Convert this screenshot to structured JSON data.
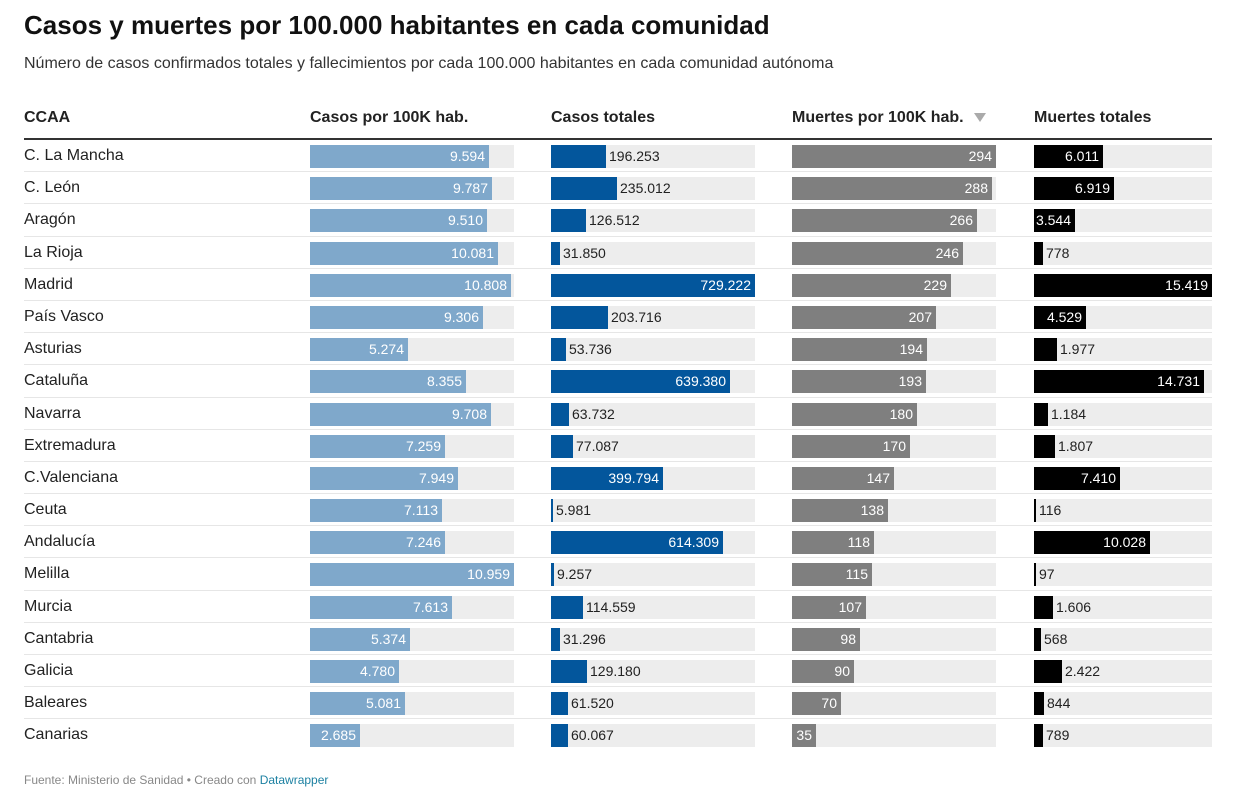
{
  "title": "Casos y muertes por 100.000 habitantes en cada comunidad",
  "subtitle": "Número de casos confirmados totales y fallecimientos por cada 100.000 habitantes en cada comunidad autónoma",
  "footer": {
    "source": "Fuente: Ministerio de Sanidad • Creado con",
    "link": "Datawrapper"
  },
  "icons": {
    "sort": "sort-descending-icon"
  },
  "colors": {
    "casos_100k": "#7fa8cb",
    "casos_totales": "#03569c",
    "muertes_100k": "#7f7f7f",
    "muertes_totales": "#000000",
    "track": "#ededed"
  },
  "chart_data": {
    "type": "table",
    "columns": [
      {
        "key": "ccaa",
        "label": "CCAA"
      },
      {
        "key": "casos_100k",
        "label": "Casos por 100K hab.",
        "max": 10959
      },
      {
        "key": "casos_totales",
        "label": "Casos totales",
        "max": 729222
      },
      {
        "key": "muertes_100k",
        "label": "Muertes por 100K hab.",
        "max": 294,
        "sorted": "descending"
      },
      {
        "key": "muertes_totales",
        "label": "Muertes totales",
        "max": 15419
      }
    ],
    "rows": [
      {
        "ccaa": "C. La Mancha",
        "casos_100k": 9594,
        "casos_100k_label": "9.594",
        "casos_totales": 196253,
        "casos_totales_label": "196.253",
        "muertes_100k": 294,
        "muertes_100k_label": "294",
        "muertes_totales": 6011,
        "muertes_totales_label": "6.011"
      },
      {
        "ccaa": "C. León",
        "casos_100k": 9787,
        "casos_100k_label": "9.787",
        "casos_totales": 235012,
        "casos_totales_label": "235.012",
        "muertes_100k": 288,
        "muertes_100k_label": "288",
        "muertes_totales": 6919,
        "muertes_totales_label": "6.919"
      },
      {
        "ccaa": "Aragón",
        "casos_100k": 9510,
        "casos_100k_label": "9.510",
        "casos_totales": 126512,
        "casos_totales_label": "126.512",
        "muertes_100k": 266,
        "muertes_100k_label": "266",
        "muertes_totales": 3544,
        "muertes_totales_label": "3.544"
      },
      {
        "ccaa": "La Rioja",
        "casos_100k": 10081,
        "casos_100k_label": "10.081",
        "casos_totales": 31850,
        "casos_totales_label": "31.850",
        "muertes_100k": 246,
        "muertes_100k_label": "246",
        "muertes_totales": 778,
        "muertes_totales_label": "778"
      },
      {
        "ccaa": "Madrid",
        "casos_100k": 10808,
        "casos_100k_label": "10.808",
        "casos_totales": 729222,
        "casos_totales_label": "729.222",
        "muertes_100k": 229,
        "muertes_100k_label": "229",
        "muertes_totales": 15419,
        "muertes_totales_label": "15.419"
      },
      {
        "ccaa": "País Vasco",
        "casos_100k": 9306,
        "casos_100k_label": "9.306",
        "casos_totales": 203716,
        "casos_totales_label": "203.716",
        "muertes_100k": 207,
        "muertes_100k_label": "207",
        "muertes_totales": 4529,
        "muertes_totales_label": "4.529"
      },
      {
        "ccaa": "Asturias",
        "casos_100k": 5274,
        "casos_100k_label": "5.274",
        "casos_totales": 53736,
        "casos_totales_label": "53.736",
        "muertes_100k": 194,
        "muertes_100k_label": "194",
        "muertes_totales": 1977,
        "muertes_totales_label": "1.977"
      },
      {
        "ccaa": "Cataluña",
        "casos_100k": 8355,
        "casos_100k_label": "8.355",
        "casos_totales": 639380,
        "casos_totales_label": "639.380",
        "muertes_100k": 193,
        "muertes_100k_label": "193",
        "muertes_totales": 14731,
        "muertes_totales_label": "14.731"
      },
      {
        "ccaa": "Navarra",
        "casos_100k": 9708,
        "casos_100k_label": "9.708",
        "casos_totales": 63732,
        "casos_totales_label": "63.732",
        "muertes_100k": 180,
        "muertes_100k_label": "180",
        "muertes_totales": 1184,
        "muertes_totales_label": "1.184"
      },
      {
        "ccaa": "Extremadura",
        "casos_100k": 7259,
        "casos_100k_label": "7.259",
        "casos_totales": 77087,
        "casos_totales_label": "77.087",
        "muertes_100k": 170,
        "muertes_100k_label": "170",
        "muertes_totales": 1807,
        "muertes_totales_label": "1.807"
      },
      {
        "ccaa": "C.Valenciana",
        "casos_100k": 7949,
        "casos_100k_label": "7.949",
        "casos_totales": 399794,
        "casos_totales_label": "399.794",
        "muertes_100k": 147,
        "muertes_100k_label": "147",
        "muertes_totales": 7410,
        "muertes_totales_label": "7.410"
      },
      {
        "ccaa": "Ceuta",
        "casos_100k": 7113,
        "casos_100k_label": "7.113",
        "casos_totales": 5981,
        "casos_totales_label": "5.981",
        "muertes_100k": 138,
        "muertes_100k_label": "138",
        "muertes_totales": 116,
        "muertes_totales_label": "116"
      },
      {
        "ccaa": "Andalucía",
        "casos_100k": 7246,
        "casos_100k_label": "7.246",
        "casos_totales": 614309,
        "casos_totales_label": "614.309",
        "muertes_100k": 118,
        "muertes_100k_label": "118",
        "muertes_totales": 10028,
        "muertes_totales_label": "10.028"
      },
      {
        "ccaa": "Melilla",
        "casos_100k": 10959,
        "casos_100k_label": "10.959",
        "casos_totales": 9257,
        "casos_totales_label": "9.257",
        "muertes_100k": 115,
        "muertes_100k_label": "115",
        "muertes_totales": 97,
        "muertes_totales_label": "97"
      },
      {
        "ccaa": "Murcia",
        "casos_100k": 7613,
        "casos_100k_label": "7.613",
        "casos_totales": 114559,
        "casos_totales_label": "114.559",
        "muertes_100k": 107,
        "muertes_100k_label": "107",
        "muertes_totales": 1606,
        "muertes_totales_label": "1.606"
      },
      {
        "ccaa": "Cantabria",
        "casos_100k": 5374,
        "casos_100k_label": "5.374",
        "casos_totales": 31296,
        "casos_totales_label": "31.296",
        "muertes_100k": 98,
        "muertes_100k_label": "98",
        "muertes_totales": 568,
        "muertes_totales_label": "568"
      },
      {
        "ccaa": "Galicia",
        "casos_100k": 4780,
        "casos_100k_label": "4.780",
        "casos_totales": 129180,
        "casos_totales_label": "129.180",
        "muertes_100k": 90,
        "muertes_100k_label": "90",
        "muertes_totales": 2422,
        "muertes_totales_label": "2.422"
      },
      {
        "ccaa": "Baleares",
        "casos_100k": 5081,
        "casos_100k_label": "5.081",
        "casos_totales": 61520,
        "casos_totales_label": "61.520",
        "muertes_100k": 70,
        "muertes_100k_label": "70",
        "muertes_totales": 844,
        "muertes_totales_label": "844"
      },
      {
        "ccaa": "Canarias",
        "casos_100k": 2685,
        "casos_100k_label": "2.685",
        "casos_totales": 60067,
        "casos_totales_label": "60.067",
        "muertes_100k": 35,
        "muertes_100k_label": "35",
        "muertes_totales": 789,
        "muertes_totales_label": "789"
      }
    ]
  }
}
